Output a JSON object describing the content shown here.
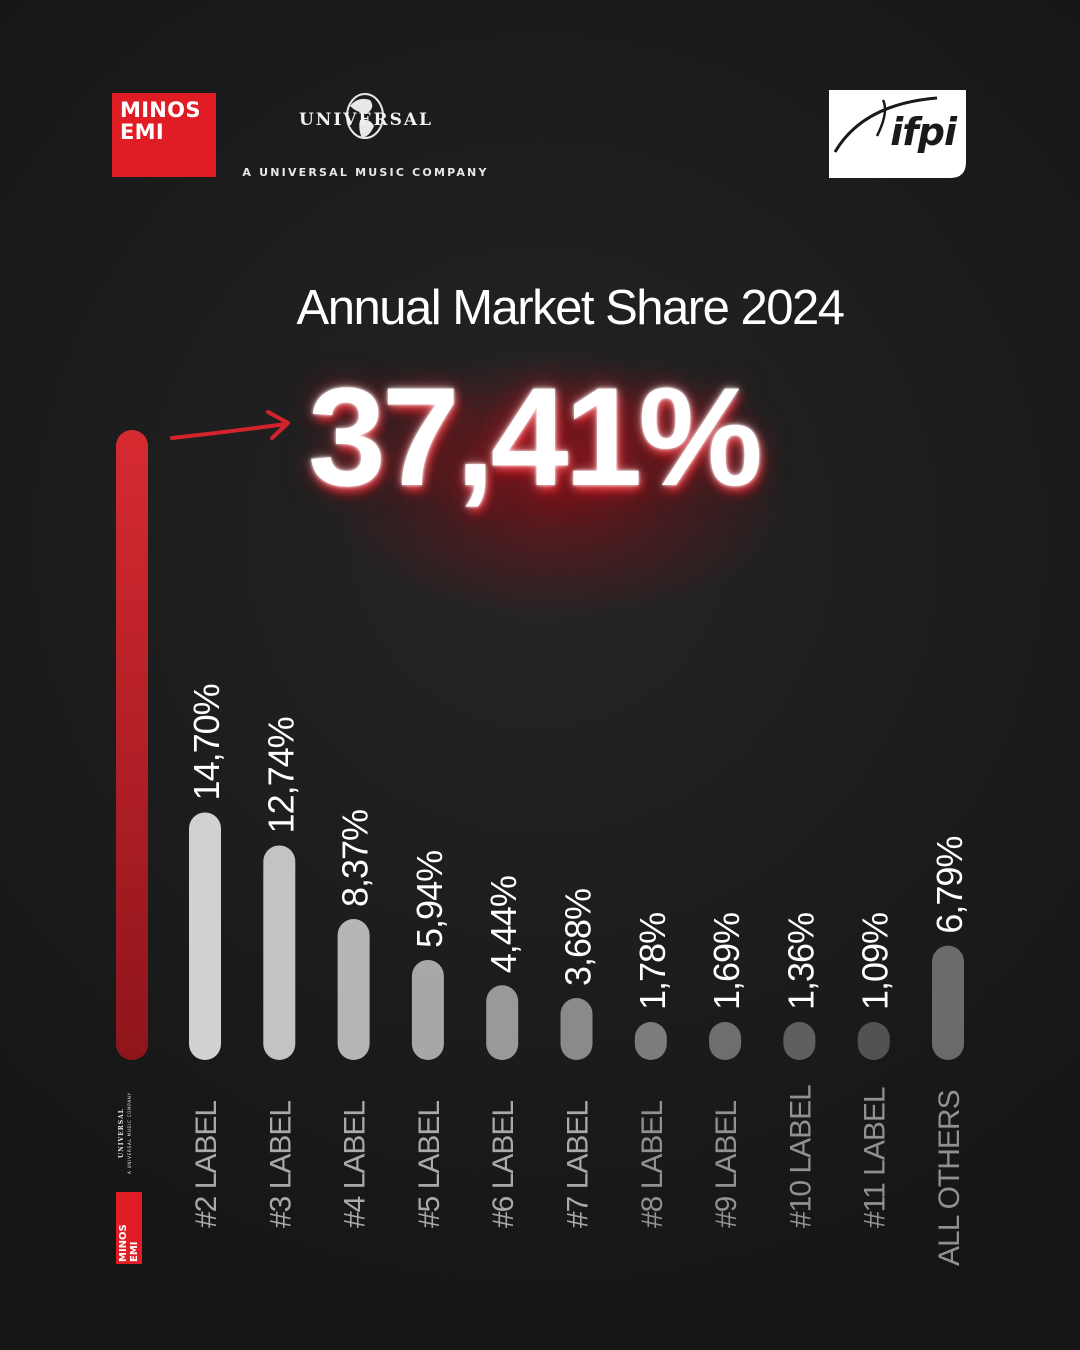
{
  "logos": {
    "minos_emi": "MINOS\nEMI",
    "minos_line1": "MINOS",
    "minos_line2": "EMI",
    "universal_word": "UNIVERSAL",
    "universal_tagline": "A UNIVERSAL MUSIC COMPANY",
    "ifpi": "ifpi"
  },
  "colors": {
    "accent_red": "#d3232c",
    "background": "#1b1b1c",
    "bar_light": "#dedede",
    "text_white": "#ffffff"
  },
  "chart_data": {
    "type": "bar",
    "title": "Annual Market Share 2024",
    "highlight_value": "37,41%",
    "leader": {
      "value": 37.41,
      "label": "37,41%"
    },
    "categories": [
      "#2 LABEL",
      "#3 LABEL",
      "#4 LABEL",
      "#5 LABEL",
      "#6 LABEL",
      "#7 LABEL",
      "#8 LABEL",
      "#9 LABEL",
      "#10 LABEL",
      "#11 LABEL",
      "ALL OTHERS"
    ],
    "values": [
      14.7,
      12.74,
      8.37,
      5.94,
      4.44,
      3.68,
      1.78,
      1.69,
      1.36,
      1.09,
      6.79
    ],
    "value_labels": [
      "14,70%",
      "12,74%",
      "8,37%",
      "5,94%",
      "4,44%",
      "3,68%",
      "1,78%",
      "1,69%",
      "1,36%",
      "1,09%",
      "6,79%"
    ],
    "ylim": [
      0,
      37.41
    ],
    "grid": false,
    "legend": "none",
    "xlabel": "",
    "ylabel": ""
  }
}
